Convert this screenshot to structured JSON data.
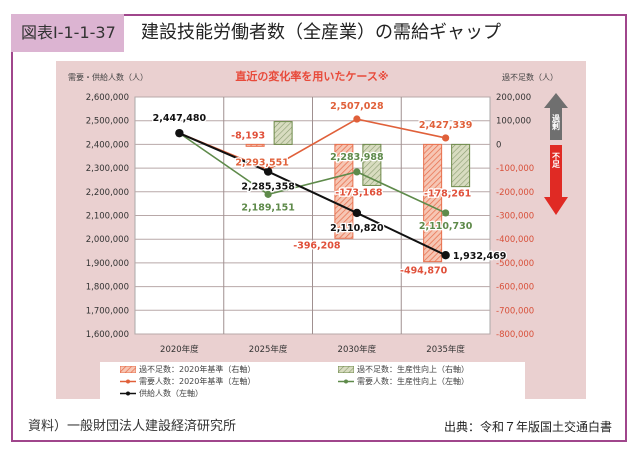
{
  "header": {
    "figure_id": "図表Ⅰ-1-1-37",
    "title": "建設技能労働者数（全産業）の需給ギャップ"
  },
  "footer": {
    "source": "資料）一般財団法人建設経済研究所",
    "credit": "出典：令和７年版国土交通白書"
  },
  "chart_data": {
    "type": "bar+line",
    "title": "直近の変化率を用いたケース※",
    "left_axis_label": "需要・供給人数（人）",
    "right_axis_label": "過不足数（人）",
    "categories": [
      "2020年度",
      "2025年度",
      "2030年度",
      "2035年度"
    ],
    "left_ylim": [
      1600000,
      2600000
    ],
    "right_ylim": [
      -800000,
      200000
    ],
    "left_ticks": [
      "2,600,000",
      "2,500,000",
      "2,400,000",
      "2,300,000",
      "2,200,000",
      "2,100,000",
      "2,000,000",
      "1,900,000",
      "1,800,000",
      "1,700,000",
      "1,600,000"
    ],
    "right_ticks": [
      "200,000",
      "100,000",
      "0",
      "-100,000",
      "-200,000",
      "-300,000",
      "-400,000",
      "-500,000",
      "-600,000",
      "-700,000",
      "-800,000"
    ],
    "arrow_up_label": "過剰",
    "arrow_down_label": "不足",
    "grid": true,
    "series": [
      {
        "name": "過不足数：2020年基準（右軸）",
        "kind": "bar",
        "axis": "right",
        "color": "#e8704e",
        "values": [
          null,
          -8193,
          -396208,
          -494870
        ],
        "labels": [
          "",
          "-8,193",
          "-396,208",
          "-494,870"
        ]
      },
      {
        "name": "過不足数：生産性向上（右軸）",
        "kind": "bar",
        "axis": "right",
        "color": "#6e8a4a",
        "values": [
          null,
          96207,
          -173168,
          -178261
        ],
        "labels": [
          "",
          "",
          "-173,168",
          "-178,261"
        ]
      },
      {
        "name": "需要人数：2020年基準（左軸）",
        "kind": "line",
        "axis": "left",
        "color": "#e0603a",
        "values": [
          2447480,
          2293551,
          2507028,
          2427339
        ],
        "labels": [
          "",
          "2,293,551",
          "2,507,028",
          "2,427,339"
        ]
      },
      {
        "name": "需要人数：生産性向上（左軸）",
        "kind": "line",
        "axis": "left",
        "color": "#5e8a4a",
        "values": [
          2447480,
          2189151,
          2283988,
          2110730
        ],
        "labels": [
          "",
          "2,189,151",
          "2,283,988",
          "2,110,730"
        ]
      },
      {
        "name": "供給人数（左軸）",
        "kind": "line",
        "axis": "left",
        "color": "#111111",
        "values": [
          2447480,
          2285358,
          2110820,
          1932469
        ],
        "labels": [
          "2,447,480",
          "2,285,358",
          "2,110,820",
          "1,932,469"
        ]
      }
    ]
  }
}
